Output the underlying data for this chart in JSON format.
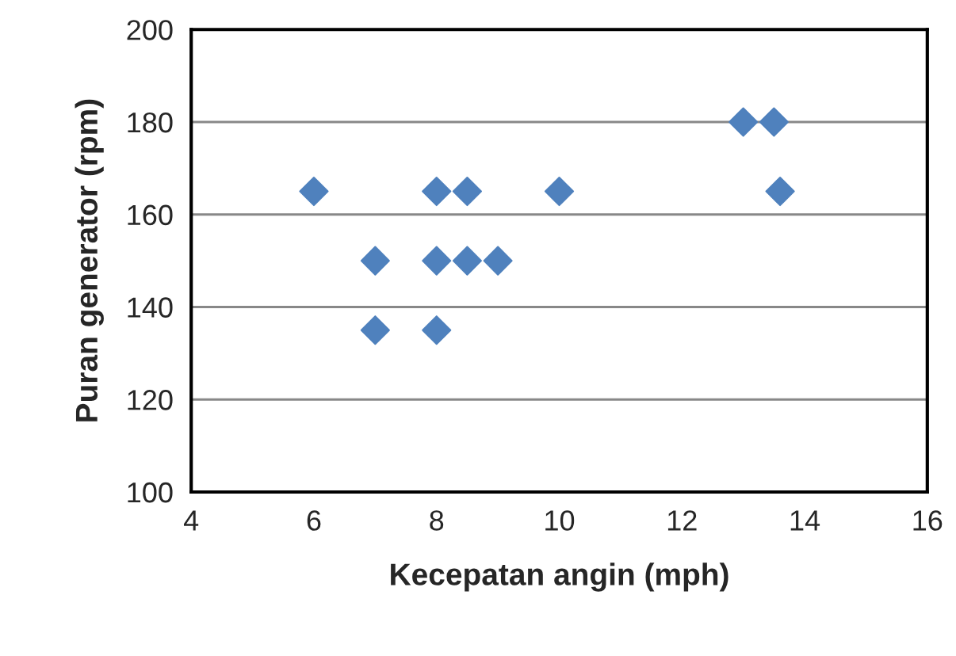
{
  "chart_data": {
    "type": "scatter",
    "xlabel": "Kecepatan angin (mph)",
    "ylabel": "Puran generator (rpm)",
    "x": [
      6,
      7,
      7,
      8,
      8,
      8,
      8.5,
      8.5,
      9,
      10,
      13,
      13.5,
      13.6
    ],
    "values": [
      165,
      150,
      135,
      165,
      150,
      135,
      165,
      150,
      150,
      165,
      180,
      180,
      165
    ],
    "color": "#4f81bd",
    "marker": "diamond",
    "xlim": [
      4,
      16
    ],
    "xticks": [
      4,
      6,
      8,
      10,
      12,
      14,
      16
    ],
    "ylim": [
      100,
      200
    ],
    "yticks": [
      100,
      120,
      140,
      160,
      180,
      200
    ],
    "grid": "y"
  }
}
